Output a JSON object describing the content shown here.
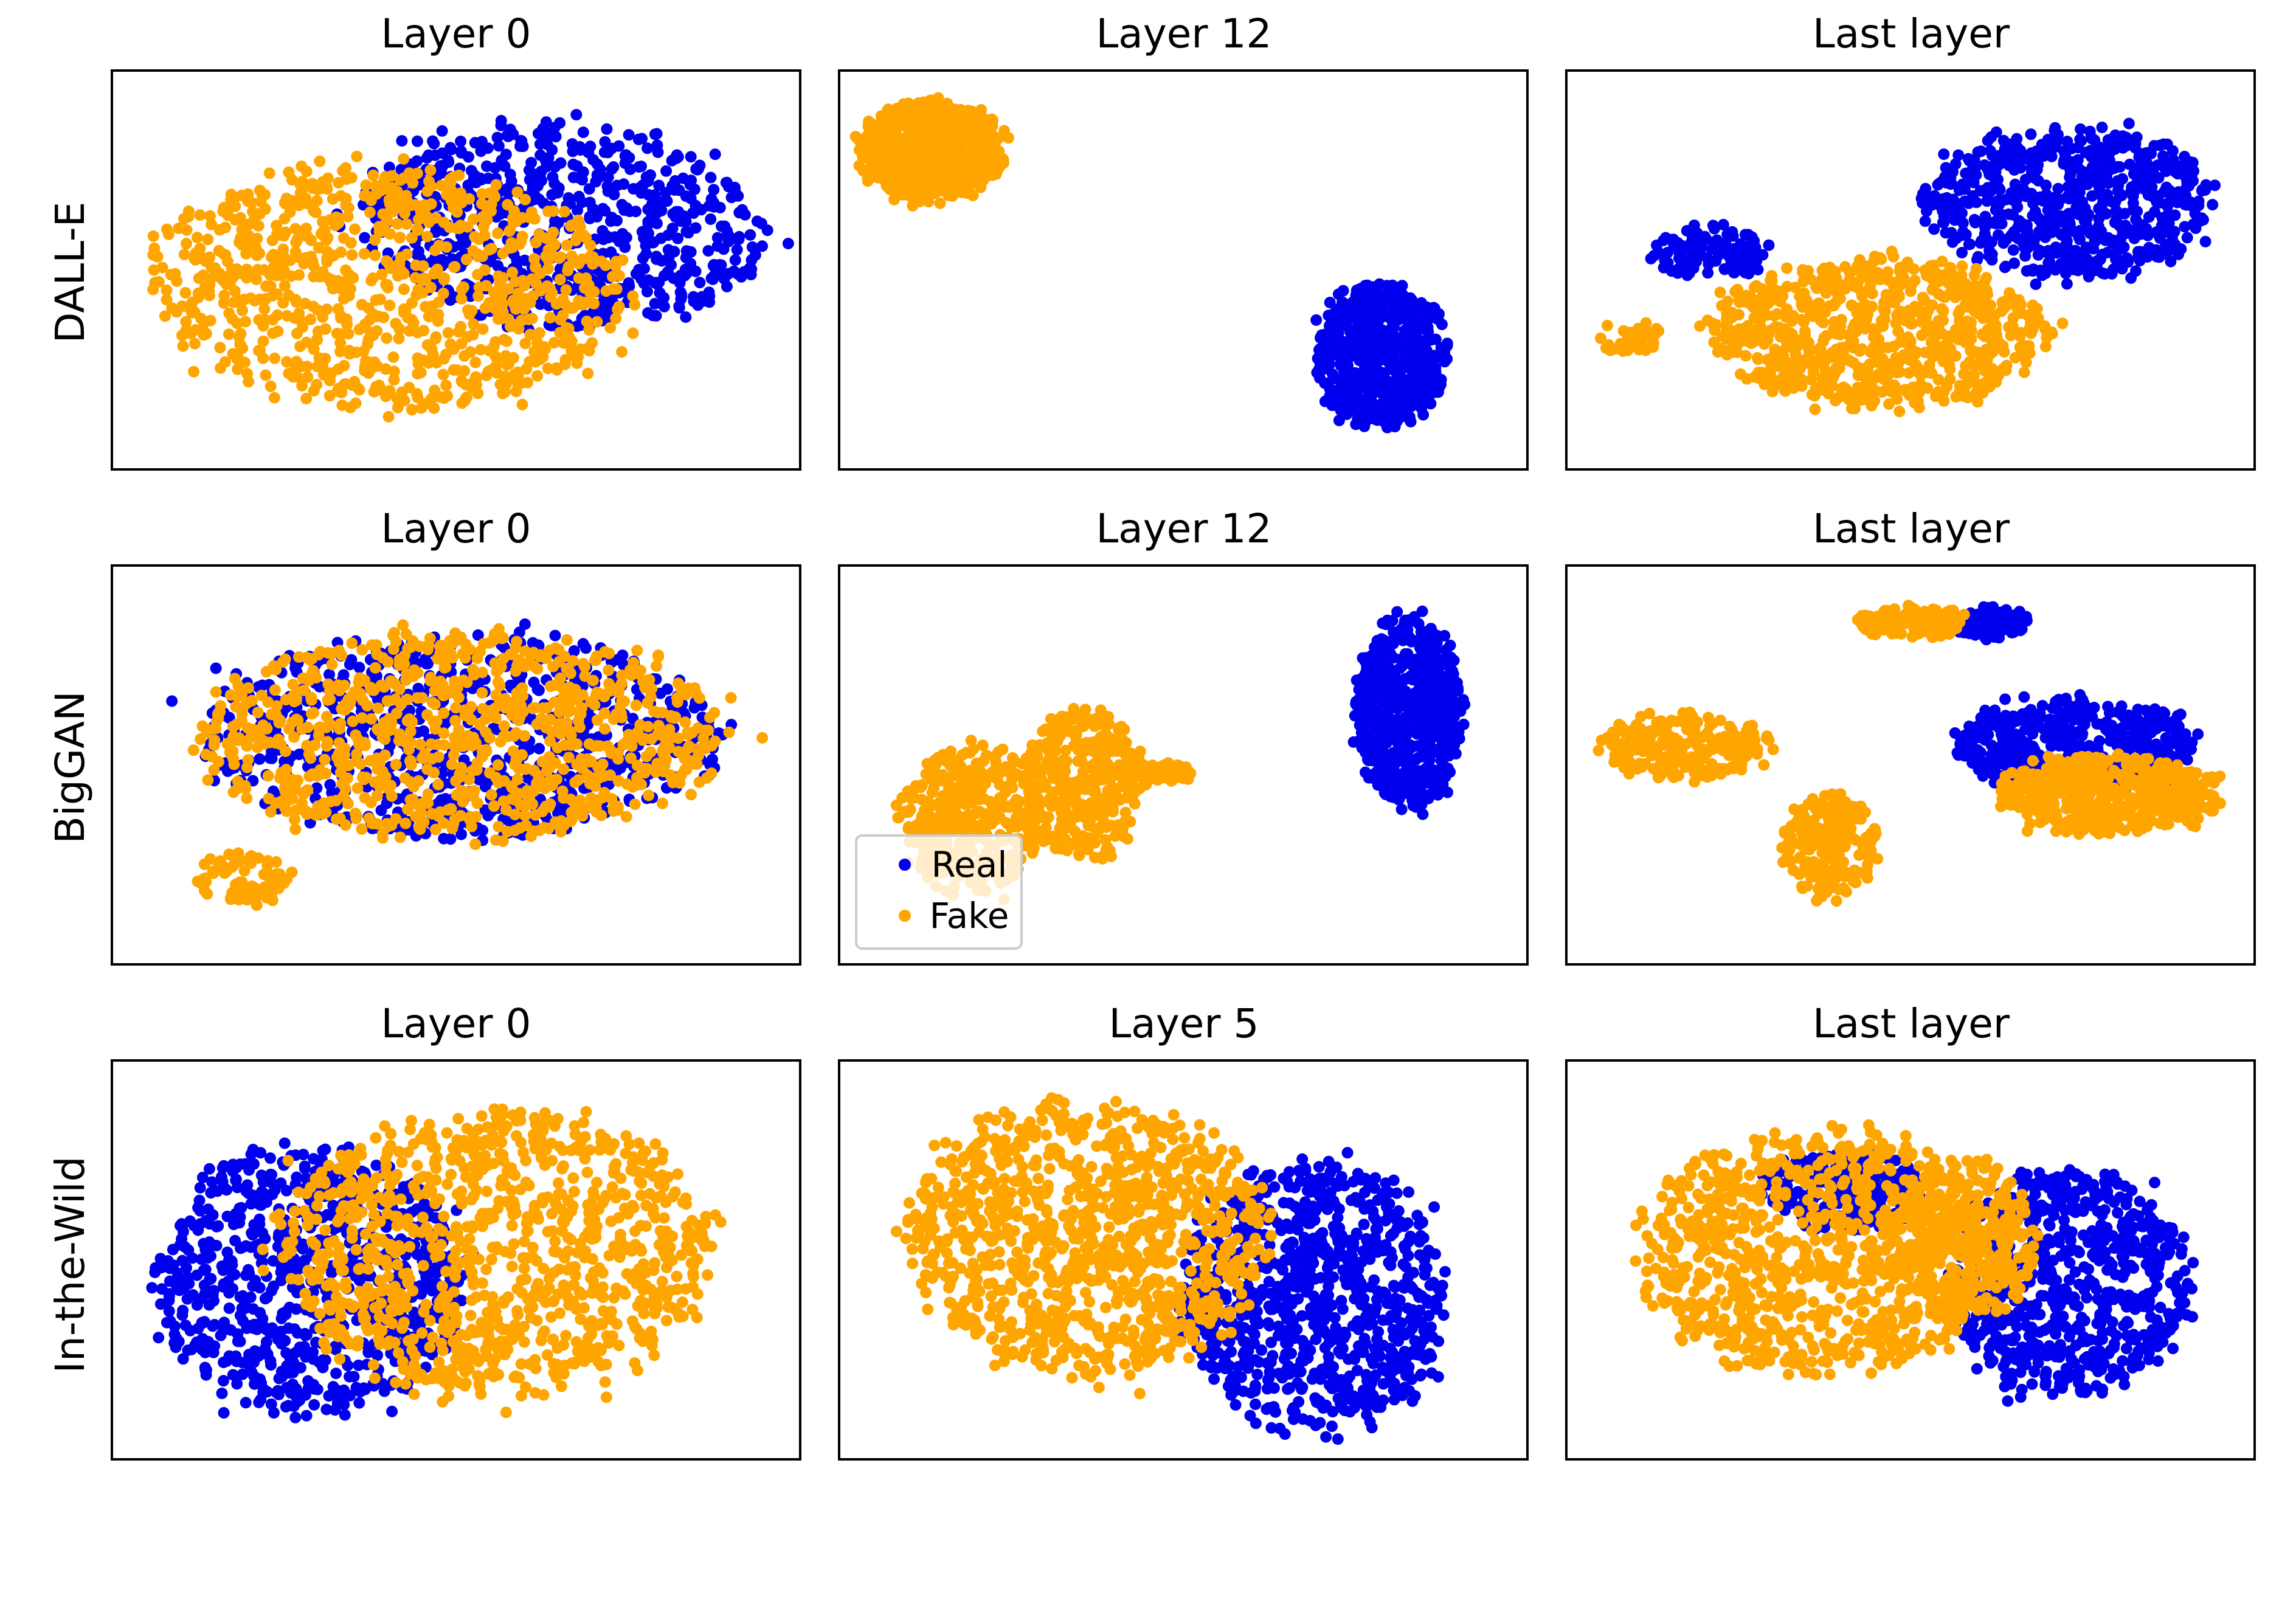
{
  "figure": {
    "row_labels": [
      "DALL-E",
      "BigGAN",
      "In-the-Wild"
    ],
    "colors": {
      "real": "#0000ee",
      "fake": "#ffa500"
    },
    "legend": {
      "entries": [
        "Real",
        "Fake"
      ],
      "location": "lower-left of BigGAN Layer 12 panel"
    }
  },
  "chart_data": [
    {
      "type": "scatter",
      "row": "DALL-E",
      "title": "Layer 0",
      "axes_ticks": "none",
      "series": [
        {
          "name": "Real",
          "color": "#0000ee",
          "clusters": [
            {
              "shape": "diagonal band",
              "cx": 0.66,
              "cy": 0.62,
              "rx": 0.34,
              "ry": 0.3,
              "rot": -25,
              "n": 700
            }
          ]
        },
        {
          "name": "Fake",
          "color": "#ffa500",
          "clusters": [
            {
              "shape": "diagonal band",
              "cx": 0.4,
              "cy": 0.45,
              "rx": 0.4,
              "ry": 0.35,
              "rot": -25,
              "n": 900
            }
          ]
        }
      ]
    },
    {
      "type": "scatter",
      "row": "DALL-E",
      "title": "Layer 12",
      "axes_ticks": "none",
      "series": [
        {
          "name": "Real",
          "color": "#0000ee",
          "clusters": [
            {
              "cx": 0.8,
              "cy": 0.27,
              "rx": 0.11,
              "ry": 0.21,
              "n": 650
            }
          ]
        },
        {
          "name": "Fake",
          "color": "#ffa500",
          "clusters": [
            {
              "cx": 0.12,
              "cy": 0.82,
              "rx": 0.12,
              "ry": 0.15,
              "n": 650
            }
          ]
        }
      ]
    },
    {
      "type": "scatter",
      "row": "DALL-E",
      "title": "Last layer",
      "axes_ticks": "none",
      "series": [
        {
          "name": "Real",
          "color": "#0000ee",
          "clusters": [
            {
              "cx": 0.74,
              "cy": 0.68,
              "rx": 0.24,
              "ry": 0.22,
              "n": 650
            },
            {
              "cx": 0.2,
              "cy": 0.55,
              "rx": 0.1,
              "ry": 0.08,
              "n": 120
            }
          ]
        },
        {
          "name": "Fake",
          "color": "#ffa500",
          "clusters": [
            {
              "cx": 0.45,
              "cy": 0.33,
              "rx": 0.28,
              "ry": 0.22,
              "n": 750
            },
            {
              "cx": 0.08,
              "cy": 0.32,
              "rx": 0.05,
              "ry": 0.05,
              "n": 40
            }
          ]
        }
      ]
    },
    {
      "type": "scatter",
      "row": "BigGAN",
      "title": "Layer 0",
      "axes_ticks": "none",
      "series": [
        {
          "name": "Real",
          "color": "#0000ee",
          "clusters": [
            {
              "cx": 0.5,
              "cy": 0.58,
              "rx": 0.44,
              "ry": 0.3,
              "n": 800
            }
          ]
        },
        {
          "name": "Fake",
          "color": "#ffa500",
          "clusters": [
            {
              "cx": 0.5,
              "cy": 0.58,
              "rx": 0.44,
              "ry": 0.3,
              "n": 900
            },
            {
              "cx": 0.18,
              "cy": 0.2,
              "rx": 0.08,
              "ry": 0.08,
              "n": 80
            }
          ]
        }
      ]
    },
    {
      "type": "scatter",
      "row": "BigGAN",
      "title": "Layer 12",
      "axes_ticks": "none",
      "series": [
        {
          "name": "Real",
          "color": "#0000ee",
          "clusters": [
            {
              "cx": 0.84,
              "cy": 0.64,
              "rx": 0.09,
              "ry": 0.28,
              "n": 700
            }
          ]
        },
        {
          "name": "Fake",
          "color": "#ffa500",
          "clusters": [
            {
              "cx": 0.18,
              "cy": 0.35,
              "rx": 0.12,
              "ry": 0.22,
              "n": 400
            },
            {
              "cx": 0.35,
              "cy": 0.45,
              "rx": 0.1,
              "ry": 0.22,
              "n": 350
            },
            {
              "cx": 0.45,
              "cy": 0.48,
              "rx": 0.08,
              "ry": 0.03,
              "n": 80
            }
          ]
        }
      ]
    },
    {
      "type": "scatter",
      "row": "BigGAN",
      "title": "Last layer",
      "axes_ticks": "none",
      "series": [
        {
          "name": "Real",
          "color": "#0000ee",
          "clusters": [
            {
              "cx": 0.75,
              "cy": 0.55,
              "rx": 0.2,
              "ry": 0.14,
              "n": 500
            },
            {
              "cx": 0.62,
              "cy": 0.88,
              "rx": 0.06,
              "ry": 0.05,
              "n": 100
            }
          ]
        },
        {
          "name": "Fake",
          "color": "#ffa500",
          "clusters": [
            {
              "cx": 0.8,
              "cy": 0.42,
              "rx": 0.18,
              "ry": 0.12,
              "n": 500
            },
            {
              "cx": 0.5,
              "cy": 0.88,
              "rx": 0.09,
              "ry": 0.05,
              "n": 120
            },
            {
              "cx": 0.16,
              "cy": 0.55,
              "rx": 0.14,
              "ry": 0.1,
              "n": 250
            },
            {
              "cx": 0.38,
              "cy": 0.28,
              "rx": 0.08,
              "ry": 0.16,
              "n": 200
            }
          ]
        }
      ]
    },
    {
      "type": "scatter",
      "row": "In-the-Wild",
      "title": "Layer 0",
      "axes_ticks": "none",
      "series": [
        {
          "name": "Real",
          "color": "#0000ee",
          "clusters": [
            {
              "cx": 0.28,
              "cy": 0.45,
              "rx": 0.26,
              "ry": 0.4,
              "n": 800
            }
          ]
        },
        {
          "name": "Fake",
          "color": "#ffa500",
          "clusters": [
            {
              "cx": 0.56,
              "cy": 0.52,
              "rx": 0.36,
              "ry": 0.42,
              "n": 1000
            }
          ]
        }
      ]
    },
    {
      "type": "scatter",
      "row": "In-the-Wild",
      "title": "Layer 5",
      "axes_ticks": "none",
      "series": [
        {
          "name": "Real",
          "color": "#0000ee",
          "clusters": [
            {
              "cx": 0.7,
              "cy": 0.4,
              "rx": 0.22,
              "ry": 0.4,
              "n": 850
            }
          ]
        },
        {
          "name": "Fake",
          "color": "#ffa500",
          "clusters": [
            {
              "cx": 0.36,
              "cy": 0.56,
              "rx": 0.3,
              "ry": 0.4,
              "n": 1000
            }
          ]
        }
      ]
    },
    {
      "type": "scatter",
      "row": "In-the-Wild",
      "title": "Last layer",
      "axes_ticks": "none",
      "series": [
        {
          "name": "Real",
          "color": "#0000ee",
          "clusters": [
            {
              "cx": 0.74,
              "cy": 0.44,
              "rx": 0.2,
              "ry": 0.34,
              "n": 700
            },
            {
              "cx": 0.4,
              "cy": 0.68,
              "rx": 0.14,
              "ry": 0.12,
              "n": 250
            }
          ]
        },
        {
          "name": "Fake",
          "color": "#ffa500",
          "clusters": [
            {
              "cx": 0.36,
              "cy": 0.52,
              "rx": 0.3,
              "ry": 0.36,
              "n": 900
            },
            {
              "cx": 0.58,
              "cy": 0.55,
              "rx": 0.12,
              "ry": 0.24,
              "n": 300
            }
          ]
        }
      ]
    }
  ]
}
